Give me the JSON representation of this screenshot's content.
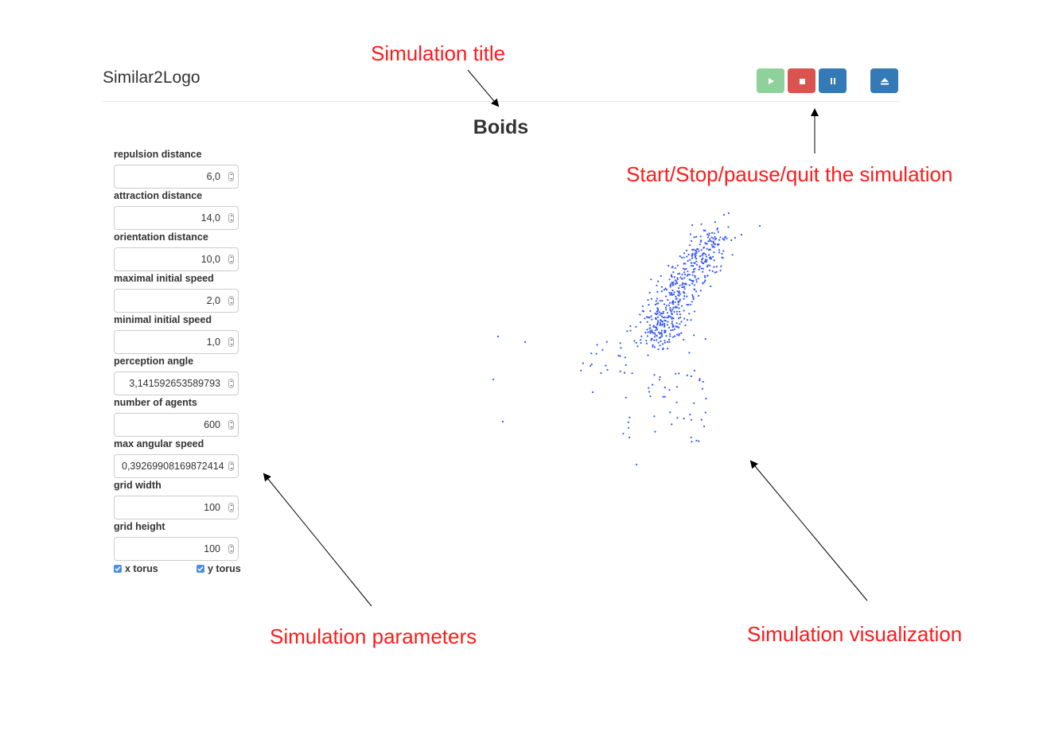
{
  "header": {
    "app_name": "Similar2Logo"
  },
  "toolbar": {
    "play_icon": "play-icon",
    "stop_icon": "stop-icon",
    "pause_icon": "pause-icon",
    "quit_icon": "eject-icon"
  },
  "simulation": {
    "title": "Boids"
  },
  "parameters": [
    {
      "label": "repulsion distance",
      "value": "6,0"
    },
    {
      "label": "attraction distance",
      "value": "14,0"
    },
    {
      "label": "orientation distance",
      "value": "10,0"
    },
    {
      "label": "maximal initial speed",
      "value": "2,0"
    },
    {
      "label": "minimal initial speed",
      "value": "1,0"
    },
    {
      "label": "perception angle",
      "value": "3,141592653589793"
    },
    {
      "label": "number of agents",
      "value": "600"
    },
    {
      "label": "max angular speed",
      "value": "0,39269908169872414"
    },
    {
      "label": "grid width",
      "value": "100"
    },
    {
      "label": "grid height",
      "value": "100"
    }
  ],
  "checkboxes": [
    {
      "label": "x torus",
      "checked": true
    },
    {
      "label": "y torus",
      "checked": true
    }
  ],
  "annotations": {
    "title": "Simulation title",
    "controls": "Start/Stop/pause/quit the simulation",
    "parameters": "Simulation parameters",
    "visualization": "Simulation visualization",
    "color": "#ff1a1a"
  },
  "colors": {
    "agents": "#3355ff",
    "play": "#8fd19b",
    "stop": "#d9534f",
    "pause": "#337ab7"
  }
}
